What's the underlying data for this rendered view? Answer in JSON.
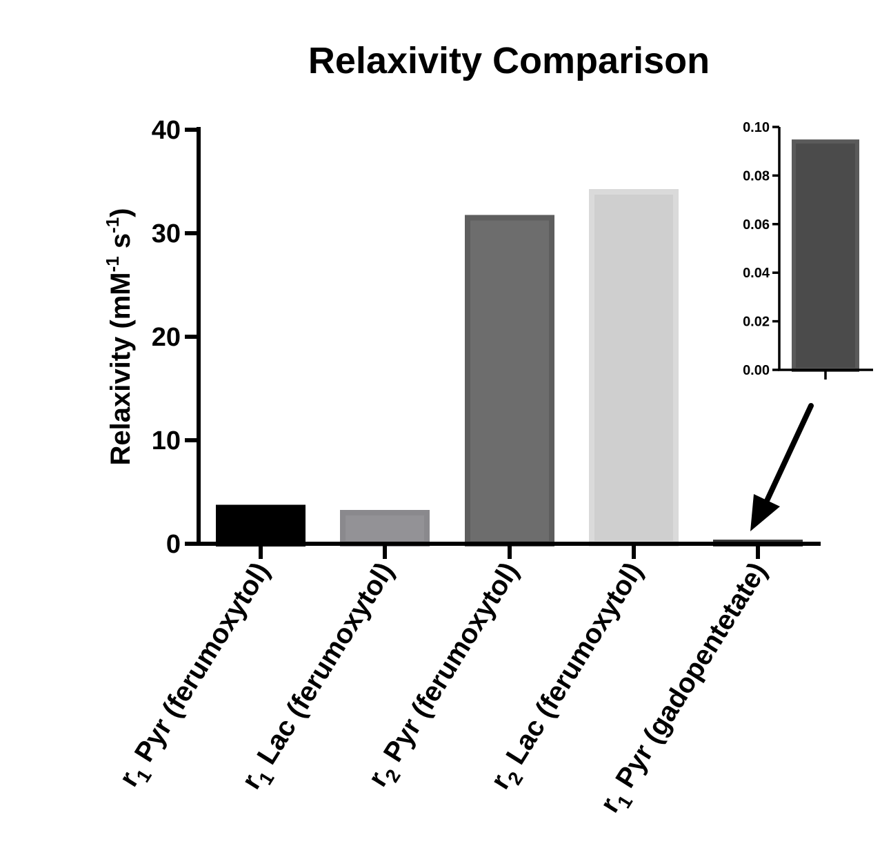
{
  "chart_data": {
    "type": "bar",
    "title": "Relaxivity Comparison",
    "ylabel": {
      "main": "Relaxivity (mM",
      "sup1": "-1",
      "mid": " s",
      "sup2": "-1",
      "end": ")"
    },
    "ylim": [
      0,
      40
    ],
    "yticks": [
      "0",
      "10",
      "20",
      "30",
      "40"
    ],
    "ytick_values": [
      0,
      10,
      20,
      30,
      40
    ],
    "categories": [
      {
        "prefix": "r",
        "sub": "1",
        "text": " Pyr (ferumoxytol)"
      },
      {
        "prefix": "r",
        "sub": "1",
        "text": " Lac (ferumoxytol)"
      },
      {
        "prefix": "r",
        "sub": "2",
        "text": " Pyr (ferumoxytol)"
      },
      {
        "prefix": "r",
        "sub": "2",
        "text": " Lac (ferumoxytol)"
      },
      {
        "prefix": "r",
        "sub": "1",
        "text": " Pyr (gadopentetate)"
      }
    ],
    "values": [
      3.5,
      3.0,
      31.5,
      34.0,
      0.094
    ],
    "bar_fill": [
      "#000000",
      "#939296",
      "#6d6d6d",
      "#cfcfcf",
      "#4b4b4b"
    ],
    "bar_border": [
      "#000000",
      "#8a898d",
      "#5e5e5e",
      "#dadada",
      "#3a3a3a"
    ],
    "inset": {
      "ylim": [
        0,
        0.1
      ],
      "yticks": [
        "0.00",
        "0.02",
        "0.04",
        "0.06",
        "0.08",
        "0.10"
      ],
      "ytick_values": [
        0,
        0.02,
        0.04,
        0.06,
        0.08,
        0.1
      ],
      "value": 0.094,
      "fill": "#4b4b4b",
      "border": "#5a5a5a"
    }
  }
}
